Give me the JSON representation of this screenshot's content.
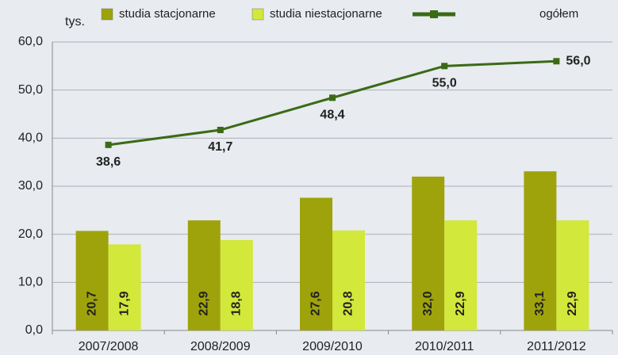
{
  "chart_data": {
    "type": "bar_line",
    "unit_label": "tys.",
    "categories": [
      "2007/2008",
      "2008/2009",
      "2009/2010",
      "2010/2011",
      "2011/2012"
    ],
    "series": [
      {
        "name": "studia stacjonarne",
        "type": "bar",
        "color": "#9ea30c",
        "values": [
          20.7,
          22.9,
          27.6,
          32.0,
          33.1
        ],
        "value_labels": [
          "20,7",
          "22,9",
          "27,6",
          "32,0",
          "33,1"
        ]
      },
      {
        "name": "studia niestacjonarne",
        "type": "bar",
        "color": "#d2e83a",
        "values": [
          17.9,
          18.8,
          20.8,
          22.9,
          22.9
        ],
        "value_labels": [
          "17,9",
          "18,8",
          "20,8",
          "22,9",
          "22,9"
        ]
      },
      {
        "name": "ogółem",
        "type": "line",
        "color": "#3a6a16",
        "values": [
          38.6,
          41.7,
          48.4,
          55.0,
          56.0
        ],
        "value_labels": [
          "38,6",
          "41,7",
          "48,4",
          "55,0",
          "56,0"
        ]
      }
    ],
    "ylim": [
      0,
      60
    ],
    "yticks": [
      {
        "value": 0,
        "label": "0,0"
      },
      {
        "value": 10,
        "label": "10,0"
      },
      {
        "value": 20,
        "label": "20,0"
      },
      {
        "value": 30,
        "label": "30,0"
      },
      {
        "value": 40,
        "label": "40,0"
      },
      {
        "value": 50,
        "label": "50,0"
      },
      {
        "value": 60,
        "label": "60,0"
      }
    ],
    "grid": true,
    "legend": "top"
  }
}
